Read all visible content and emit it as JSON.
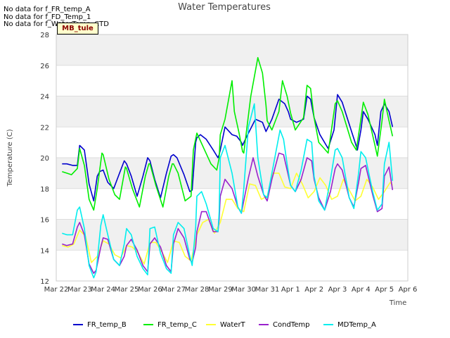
{
  "no_data_lines": [
    "No data for f_FR_temp_A",
    "No data for f_FD_Temp_1",
    "No data for f_WaterTemp_CTD"
  ],
  "tag_label": "MB_tule",
  "chart_data": {
    "type": "line",
    "title": "Water Temperatures",
    "xlabel": "Time",
    "ylabel": "Temperature (C)",
    "ylim": [
      12,
      28
    ],
    "yticks": [
      12,
      14,
      16,
      18,
      20,
      22,
      24,
      26,
      28
    ],
    "xlim": [
      0,
      15
    ],
    "xticks": [
      0,
      1,
      2,
      3,
      4,
      5,
      6,
      7,
      8,
      9,
      10,
      11,
      12,
      13,
      14,
      15
    ],
    "xtick_labels": [
      "Mar 22",
      "Mar 23",
      "Mar 24",
      "Mar 25",
      "Mar 26",
      "Mar 27",
      "Mar 28",
      "Mar 29",
      "Mar 30",
      "Mar 31",
      "Apr 1",
      "Apr 2",
      "Apr 3",
      "Apr 4",
      "Apr 5",
      "Apr 6"
    ],
    "grid": true,
    "banded_background": true,
    "legend_position": "bottom",
    "series": [
      {
        "name": "FR_temp_B",
        "color": "#0000cc",
        "x": [
          0.25,
          0.45,
          0.7,
          0.9,
          1.0,
          1.2,
          1.4,
          1.6,
          1.75,
          1.85,
          2.0,
          2.2,
          2.45,
          2.7,
          2.9,
          3.0,
          3.2,
          3.45,
          3.7,
          3.9,
          4.0,
          4.2,
          4.45,
          4.7,
          4.9,
          5.0,
          5.15,
          5.45,
          5.7,
          5.8,
          5.95,
          6.0,
          6.15,
          6.4,
          6.7,
          6.9,
          6.95,
          7.0,
          7.2,
          7.5,
          7.7,
          7.9,
          7.95,
          8.1,
          8.5,
          8.65,
          8.8,
          8.95,
          9.2,
          9.5,
          9.75,
          9.9,
          10.0,
          10.25,
          10.55,
          10.7,
          10.85,
          11.0,
          11.25,
          11.6,
          11.85,
          12.0,
          12.2,
          12.6,
          12.75,
          12.85,
          13.0,
          13.1,
          13.3,
          13.6,
          13.7,
          13.85,
          14.0,
          14.2,
          14.35
        ],
        "y": [
          19.6,
          19.6,
          19.5,
          19.5,
          20.8,
          20.5,
          18.3,
          17.2,
          18.8,
          19.1,
          19.2,
          18.4,
          18.0,
          19.0,
          19.8,
          19.6,
          18.8,
          17.5,
          18.8,
          20.0,
          19.8,
          18.6,
          17.4,
          19.0,
          20.1,
          20.2,
          20.0,
          18.9,
          17.8,
          17.9,
          21.0,
          21.3,
          21.5,
          21.2,
          20.5,
          20.0,
          20.2,
          20.5,
          22.0,
          21.5,
          21.4,
          21.0,
          20.8,
          21.3,
          22.5,
          22.4,
          22.3,
          21.7,
          22.5,
          23.8,
          23.5,
          23.0,
          22.5,
          22.3,
          22.5,
          24.0,
          23.8,
          22.6,
          21.5,
          20.6,
          21.8,
          24.1,
          23.6,
          21.7,
          21.0,
          20.5,
          21.8,
          23.0,
          22.5,
          21.5,
          20.8,
          23.0,
          23.5,
          23.0,
          22.0
        ]
      },
      {
        "name": "FR_temp_C",
        "color": "#00ee00",
        "x": [
          0.25,
          0.45,
          0.65,
          0.9,
          1.0,
          1.2,
          1.4,
          1.6,
          1.75,
          1.95,
          2.0,
          2.25,
          2.5,
          2.7,
          2.95,
          3.0,
          3.25,
          3.55,
          3.8,
          3.95,
          4.0,
          4.25,
          4.55,
          4.8,
          4.95,
          5.0,
          5.2,
          5.5,
          5.75,
          5.85,
          6.0,
          6.3,
          6.6,
          6.85,
          6.95,
          7.0,
          7.2,
          7.5,
          7.6,
          7.8,
          7.95,
          8.0,
          8.3,
          8.6,
          8.8,
          8.95,
          9.0,
          9.2,
          9.5,
          9.65,
          9.85,
          10.0,
          10.2,
          10.55,
          10.7,
          10.85,
          11.0,
          11.2,
          11.6,
          11.9,
          12.0,
          12.2,
          12.6,
          12.8,
          13.0,
          13.1,
          13.3,
          13.6,
          13.7,
          13.9,
          14.0,
          14.2,
          14.35
        ],
        "y": [
          19.1,
          19.0,
          18.9,
          19.3,
          20.6,
          19.5,
          17.3,
          16.6,
          18.0,
          20.3,
          20.2,
          18.6,
          17.6,
          17.3,
          19.4,
          19.3,
          18.0,
          16.8,
          18.8,
          19.6,
          19.6,
          18.2,
          16.8,
          18.8,
          19.6,
          19.6,
          19.0,
          17.2,
          17.5,
          20.5,
          21.6,
          20.6,
          19.6,
          19.2,
          20.0,
          21.5,
          22.5,
          25.0,
          23.0,
          21.6,
          20.4,
          20.3,
          24.0,
          26.5,
          25.5,
          23.4,
          22.4,
          21.8,
          23.0,
          25.0,
          24.0,
          22.9,
          21.8,
          22.6,
          24.7,
          24.5,
          22.6,
          21.0,
          20.3,
          23.5,
          23.7,
          23.0,
          21.0,
          20.5,
          22.5,
          23.6,
          22.8,
          20.8,
          20.1,
          22.4,
          23.8,
          22.4,
          21.4
        ]
      },
      {
        "name": "WaterT",
        "color": "#ffff33",
        "x": [
          0.25,
          0.5,
          0.75,
          1.0,
          1.25,
          1.5,
          1.75,
          2.0,
          2.25,
          2.5,
          2.75,
          3.0,
          3.25,
          3.5,
          3.75,
          4.0,
          4.25,
          4.5,
          4.75,
          5.0,
          5.25,
          5.5,
          5.75,
          6.0,
          6.25,
          6.5,
          6.75,
          7.0,
          7.25,
          7.5,
          7.75,
          8.0,
          8.25,
          8.5,
          8.75,
          9.0,
          9.25,
          9.5,
          9.75,
          10.0,
          10.25,
          10.5,
          10.75,
          11.0,
          11.25,
          11.5,
          11.75,
          12.0,
          12.25,
          12.5,
          12.75,
          13.0,
          13.25,
          13.5,
          13.75,
          14.0,
          14.25,
          14.35
        ],
        "y": [
          14.3,
          14.2,
          14.4,
          15.3,
          14.9,
          13.2,
          13.6,
          14.6,
          14.4,
          13.7,
          13.5,
          14.3,
          14.2,
          13.8,
          13.1,
          14.5,
          14.5,
          13.9,
          13.2,
          14.6,
          14.5,
          13.6,
          13.3,
          15.0,
          15.8,
          16.0,
          15.1,
          15.8,
          17.3,
          17.3,
          16.7,
          16.5,
          18.3,
          18.2,
          17.3,
          17.5,
          19.0,
          19.0,
          18.1,
          18.0,
          19.0,
          18.3,
          17.4,
          17.8,
          18.7,
          18.2,
          17.3,
          17.5,
          18.6,
          17.9,
          17.2,
          17.5,
          18.6,
          18.1,
          17.3,
          17.8,
          18.4,
          18.2
        ]
      },
      {
        "name": "CondTemp",
        "color": "#9922cc",
        "x": [
          0.25,
          0.45,
          0.7,
          0.9,
          1.0,
          1.2,
          1.4,
          1.6,
          1.7,
          1.9,
          2.0,
          2.2,
          2.45,
          2.7,
          2.9,
          3.0,
          3.2,
          3.45,
          3.7,
          3.9,
          4.0,
          4.2,
          4.45,
          4.7,
          4.9,
          5.0,
          5.2,
          5.45,
          5.7,
          5.8,
          5.95,
          6.0,
          6.2,
          6.4,
          6.7,
          6.9,
          6.95,
          7.0,
          7.2,
          7.5,
          7.75,
          7.9,
          8.0,
          8.2,
          8.4,
          8.6,
          8.85,
          9.0,
          9.2,
          9.5,
          9.7,
          9.85,
          10.0,
          10.2,
          10.45,
          10.7,
          10.9,
          11.0,
          11.2,
          11.45,
          11.7,
          11.9,
          12.0,
          12.2,
          12.5,
          12.7,
          12.9,
          13.0,
          13.2,
          13.5,
          13.7,
          13.9,
          14.0,
          14.2,
          14.35
        ],
        "y": [
          14.4,
          14.3,
          14.4,
          15.5,
          15.8,
          15.0,
          13.1,
          12.5,
          12.7,
          14.2,
          14.8,
          14.7,
          13.4,
          13.0,
          13.6,
          14.3,
          14.7,
          14.0,
          13.0,
          12.6,
          14.4,
          14.8,
          14.2,
          13.0,
          12.6,
          14.4,
          15.4,
          14.8,
          13.4,
          13.2,
          14.2,
          15.2,
          16.5,
          16.5,
          15.2,
          15.2,
          16.0,
          17.5,
          18.6,
          18.0,
          16.8,
          16.4,
          17.2,
          18.7,
          20.0,
          18.8,
          17.6,
          17.2,
          18.6,
          20.3,
          20.2,
          19.2,
          18.2,
          17.8,
          18.6,
          20.0,
          19.8,
          18.6,
          17.4,
          16.6,
          17.8,
          19.3,
          19.6,
          19.2,
          17.4,
          16.8,
          18.4,
          19.3,
          19.5,
          17.6,
          16.5,
          16.7,
          18.8,
          19.4,
          17.9
        ]
      },
      {
        "name": "MDTemp_A",
        "color": "#00eeee",
        "x": [
          0.25,
          0.45,
          0.7,
          0.9,
          1.0,
          1.2,
          1.4,
          1.6,
          1.7,
          1.9,
          2.0,
          2.2,
          2.45,
          2.7,
          2.9,
          3.0,
          3.2,
          3.45,
          3.7,
          3.9,
          4.0,
          4.2,
          4.45,
          4.7,
          4.9,
          5.0,
          5.2,
          5.45,
          5.7,
          5.8,
          5.95,
          6.0,
          6.2,
          6.4,
          6.7,
          6.9,
          6.95,
          7.0,
          7.2,
          7.5,
          7.75,
          7.9,
          8.0,
          8.2,
          8.45,
          8.6,
          8.85,
          9.0,
          9.2,
          9.55,
          9.7,
          9.85,
          10.0,
          10.2,
          10.45,
          10.7,
          10.9,
          11.0,
          11.2,
          11.45,
          11.7,
          11.9,
          12.0,
          12.2,
          12.5,
          12.7,
          12.9,
          13.0,
          13.2,
          13.5,
          13.7,
          13.9,
          14.0,
          14.2,
          14.35
        ],
        "y": [
          15.1,
          15.0,
          15.0,
          16.6,
          16.8,
          15.4,
          13.0,
          12.2,
          12.6,
          15.6,
          16.3,
          15.0,
          13.4,
          13.0,
          14.4,
          15.4,
          15.0,
          13.6,
          12.8,
          12.4,
          15.4,
          15.5,
          13.8,
          12.8,
          12.5,
          15.0,
          15.8,
          15.4,
          13.6,
          13.0,
          15.5,
          17.5,
          17.8,
          17.0,
          15.4,
          15.2,
          16.5,
          20.0,
          20.8,
          19.0,
          16.8,
          16.4,
          18.0,
          22.0,
          23.5,
          20.0,
          17.6,
          17.4,
          19.0,
          21.8,
          21.2,
          19.6,
          18.2,
          17.8,
          19.2,
          21.2,
          21.0,
          18.8,
          17.2,
          16.6,
          18.6,
          20.5,
          20.6,
          20.0,
          17.4,
          16.7,
          19.0,
          20.4,
          20.0,
          17.8,
          16.6,
          17.0,
          19.6,
          21.0,
          18.5
        ]
      }
    ]
  }
}
